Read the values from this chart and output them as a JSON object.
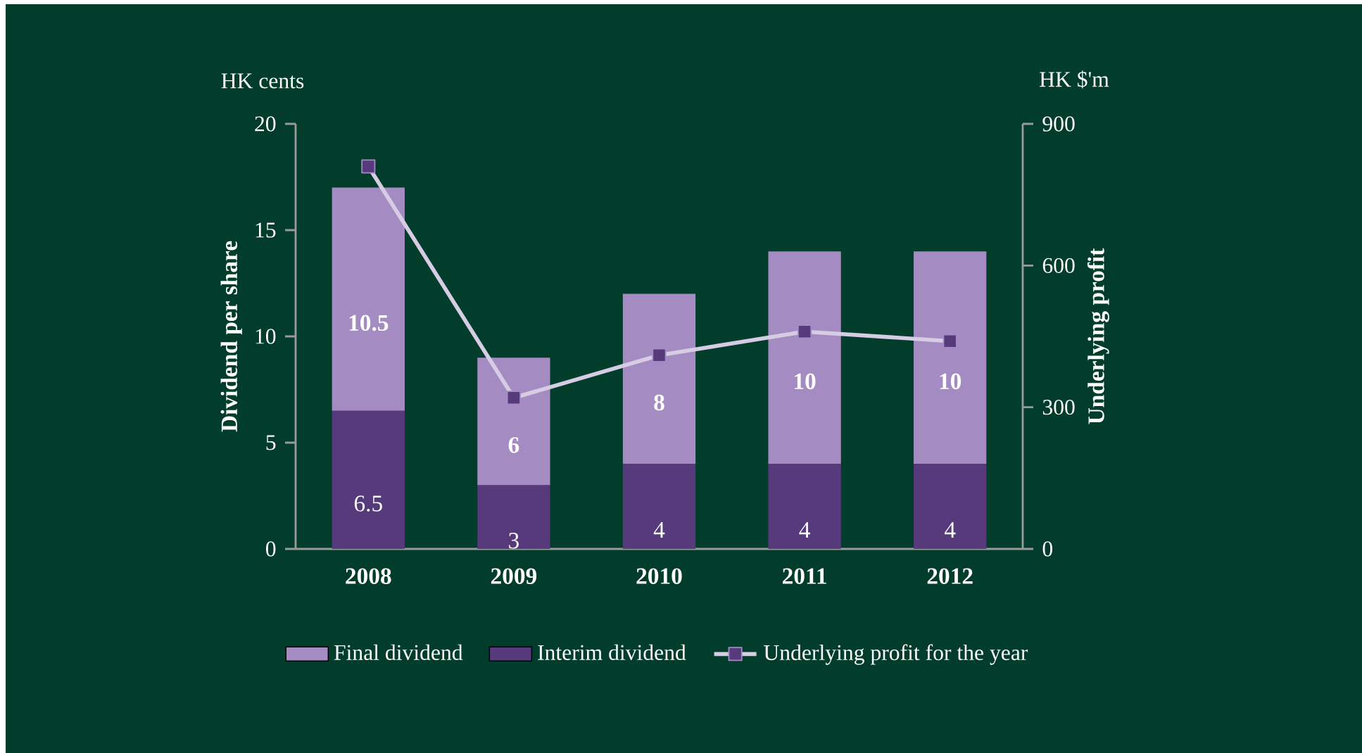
{
  "chart_data": {
    "type": "bar",
    "stacked": true,
    "categories": [
      "2008",
      "2009",
      "2010",
      "2011",
      "2012"
    ],
    "ylabel": "Dividend per share",
    "y2label": "Underlying profit",
    "annotations": [
      "HK cents",
      "HK $'m"
    ],
    "ylim": [
      0,
      20
    ],
    "yticks": [
      0,
      5,
      10,
      15,
      20
    ],
    "y2lim": [
      0,
      900
    ],
    "y2ticks": [
      0,
      300,
      600,
      900
    ],
    "series": [
      {
        "name": "Interim dividend",
        "color": "#573a7c",
        "values": [
          6.5,
          3,
          4,
          4,
          4
        ],
        "value_labels": [
          "6.5",
          "3",
          "4",
          "4",
          "4"
        ]
      },
      {
        "name": "Final dividend",
        "color": "#a48cc2",
        "values": [
          10.5,
          6,
          8,
          10,
          10
        ],
        "value_labels": [
          "10.5",
          "6",
          "8",
          "10",
          "10"
        ]
      },
      {
        "name": "Underlying profit for the year",
        "type": "line",
        "axis": "y2",
        "color": "#d6cce4",
        "marker": "square",
        "values": [
          810,
          320,
          410,
          460,
          440
        ]
      }
    ],
    "legend": "bottom",
    "grid": false
  }
}
